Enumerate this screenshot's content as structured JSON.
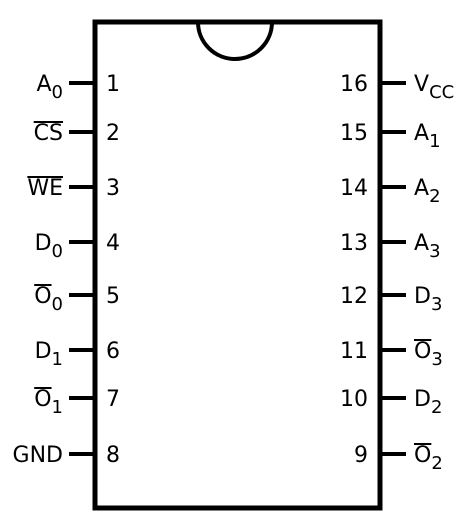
{
  "diagram": {
    "colors": {
      "line": "#000000",
      "background": "#ffffff"
    },
    "pins_left": [
      {
        "number": "1",
        "main": "A",
        "sub": "0",
        "overline": false
      },
      {
        "number": "2",
        "main": "CS",
        "sub": "",
        "overline": true
      },
      {
        "number": "3",
        "main": "WE",
        "sub": "",
        "overline": true
      },
      {
        "number": "4",
        "main": "D",
        "sub": "0",
        "overline": false
      },
      {
        "number": "5",
        "main": "O",
        "sub": "0",
        "overline": true
      },
      {
        "number": "6",
        "main": "D",
        "sub": "1",
        "overline": false
      },
      {
        "number": "7",
        "main": "O",
        "sub": "1",
        "overline": true
      },
      {
        "number": "8",
        "main": "GND",
        "sub": "",
        "overline": false
      }
    ],
    "pins_right": [
      {
        "number": "16",
        "main": "V",
        "sub": "CC",
        "overline": false
      },
      {
        "number": "15",
        "main": "A",
        "sub": "1",
        "overline": false
      },
      {
        "number": "14",
        "main": "A",
        "sub": "2",
        "overline": false
      },
      {
        "number": "13",
        "main": "A",
        "sub": "3",
        "overline": false
      },
      {
        "number": "12",
        "main": "D",
        "sub": "3",
        "overline": false
      },
      {
        "number": "11",
        "main": "O",
        "sub": "3",
        "overline": true
      },
      {
        "number": "10",
        "main": "D",
        "sub": "2",
        "overline": false
      },
      {
        "number": "9",
        "main": "O",
        "sub": "2",
        "overline": true
      }
    ]
  }
}
